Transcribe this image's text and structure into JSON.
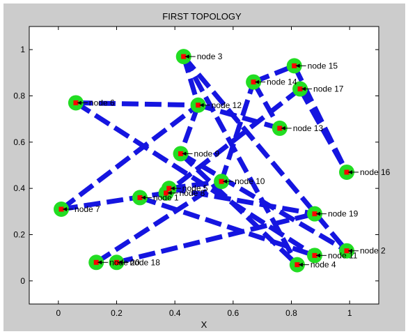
{
  "chart_data": {
    "type": "scatter",
    "title": "FIRST TOPOLOGY",
    "xlabel": "X",
    "ylabel": "",
    "xlim": [
      -0.1,
      1.1
    ],
    "ylim": [
      -0.1,
      1.1
    ],
    "xticks": [
      0,
      0.2,
      0.4,
      0.6,
      0.8,
      1
    ],
    "yticks": [
      0,
      0.2,
      0.4,
      0.6,
      0.8,
      1
    ],
    "xtick_labels": [
      "0",
      "0.2",
      "0.4",
      "0.6",
      "0.8",
      "1"
    ],
    "ytick_labels": [
      "0",
      "0.2",
      "0.4",
      "0.6",
      "0.8",
      "1"
    ],
    "grid": false,
    "colors": {
      "figure_background": "#cccccc",
      "axes_background": "#ffffff",
      "node_fill": "#22dd22",
      "node_marker": "#ff0000",
      "link": "#1515e0"
    },
    "nodes": [
      {
        "id": 1,
        "label": "node 1",
        "x": 0.28,
        "y": 0.36
      },
      {
        "id": 2,
        "label": "node 2",
        "x": 0.99,
        "y": 0.13
      },
      {
        "id": 3,
        "label": "node 3",
        "x": 0.43,
        "y": 0.97
      },
      {
        "id": 4,
        "label": "node 4",
        "x": 0.82,
        "y": 0.07
      },
      {
        "id": 5,
        "label": "node 5",
        "x": 0.38,
        "y": 0.4
      },
      {
        "id": 6,
        "label": "node 6",
        "x": 0.06,
        "y": 0.77
      },
      {
        "id": 7,
        "label": "node 7",
        "x": 0.01,
        "y": 0.31
      },
      {
        "id": 8,
        "label": "node 8",
        "x": 0.37,
        "y": 0.38
      },
      {
        "id": 9,
        "label": "node 9",
        "x": 0.42,
        "y": 0.55
      },
      {
        "id": 10,
        "label": "node 10",
        "x": 0.56,
        "y": 0.43
      },
      {
        "id": 11,
        "label": "node 11",
        "x": 0.88,
        "y": 0.11
      },
      {
        "id": 12,
        "label": "node 12",
        "x": 0.48,
        "y": 0.76
      },
      {
        "id": 13,
        "label": "node 13",
        "x": 0.76,
        "y": 0.66
      },
      {
        "id": 14,
        "label": "node 14",
        "x": 0.67,
        "y": 0.86
      },
      {
        "id": 15,
        "label": "node 15",
        "x": 0.81,
        "y": 0.93
      },
      {
        "id": 16,
        "label": "node 16",
        "x": 0.99,
        "y": 0.47
      },
      {
        "id": 17,
        "label": "node 17",
        "x": 0.83,
        "y": 0.83
      },
      {
        "id": 18,
        "label": "node 18",
        "x": 0.2,
        "y": 0.08
      },
      {
        "id": 19,
        "label": "node 19",
        "x": 0.88,
        "y": 0.29
      },
      {
        "id": 20,
        "label": "node 20",
        "x": 0.13,
        "y": 0.08
      }
    ],
    "links": [
      [
        6,
        12
      ],
      [
        6,
        11
      ],
      [
        3,
        12
      ],
      [
        3,
        4
      ],
      [
        3,
        2
      ],
      [
        14,
        15
      ],
      [
        14,
        13
      ],
      [
        12,
        13
      ],
      [
        15,
        16
      ],
      [
        17,
        16
      ],
      [
        17,
        8
      ],
      [
        7,
        12
      ],
      [
        7,
        8
      ],
      [
        9,
        4
      ],
      [
        9,
        2
      ],
      [
        5,
        19
      ],
      [
        5,
        10
      ],
      [
        10,
        14
      ],
      [
        18,
        19
      ],
      [
        20,
        10
      ],
      [
        12,
        9
      ],
      [
        1,
        11
      ]
    ]
  }
}
